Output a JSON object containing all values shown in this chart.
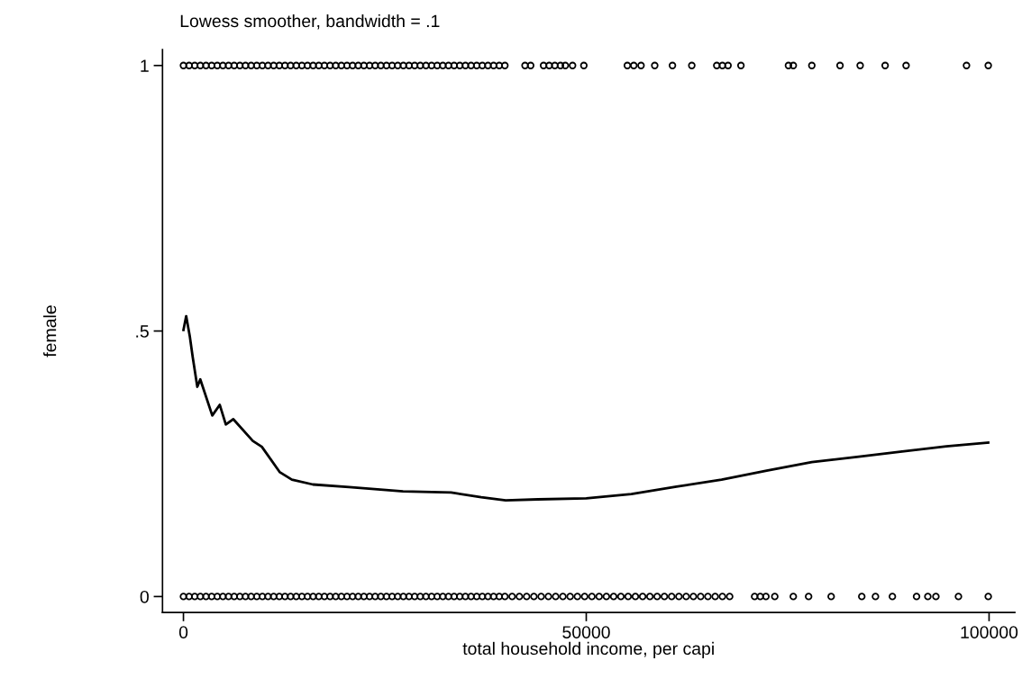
{
  "chart_data": {
    "type": "scatter",
    "title": "Lowess smoother, bandwidth = .1",
    "xlabel": "total household income, per capi",
    "ylabel": "female",
    "xlim": [
      -2600,
      103200
    ],
    "ylim": [
      -0.03,
      1.03
    ],
    "xticks": [
      0,
      50000,
      100000
    ],
    "yticks": [
      0,
      {
        "value": 0.5,
        "label": ".5"
      },
      1
    ],
    "grid": false,
    "series": [
      {
        "marker": "circle",
        "color": "#000000",
        "x": [
          0,
          700,
          1400,
          2100,
          2800,
          3500,
          4200,
          4900,
          5600,
          6300,
          7000,
          7700,
          8400,
          9100,
          9800,
          10500,
          11200,
          11900,
          12600,
          13300,
          14000,
          14700,
          15400,
          16100,
          16800,
          17500,
          18200,
          18900,
          19600,
          20300,
          21000,
          21700,
          22400,
          23100,
          23800,
          24500,
          25200,
          25900,
          26600,
          27300,
          28000,
          28700,
          29400,
          30100,
          30800,
          31500,
          32200,
          32900,
          33600,
          34300,
          35000,
          35700,
          36400,
          37100,
          37800,
          38500,
          39200,
          39900,
          42400,
          43100,
          44700,
          45400,
          46100,
          46800,
          47400,
          48300,
          49700,
          55100,
          55900,
          56800,
          58500,
          60700,
          63100,
          66200,
          66900,
          67600,
          69200,
          75100,
          75700,
          78000,
          81500,
          84000,
          87100,
          89700,
          97200,
          99900
        ],
        "values": [
          1,
          1,
          1,
          1,
          1,
          1,
          1,
          1,
          1,
          1,
          1,
          1,
          1,
          1,
          1,
          1,
          1,
          1,
          1,
          1,
          1,
          1,
          1,
          1,
          1,
          1,
          1,
          1,
          1,
          1,
          1,
          1,
          1,
          1,
          1,
          1,
          1,
          1,
          1,
          1,
          1,
          1,
          1,
          1,
          1,
          1,
          1,
          1,
          1,
          1,
          1,
          1,
          1,
          1,
          1,
          1,
          1,
          1,
          1,
          1,
          1,
          1,
          1,
          1,
          1,
          1,
          1,
          1,
          1,
          1,
          1,
          1,
          1,
          1,
          1,
          1,
          1,
          1,
          1,
          1,
          1,
          1,
          1,
          1,
          1,
          1
        ]
      },
      {
        "marker": "circle",
        "color": "#000000",
        "x": [
          0,
          700,
          1400,
          2100,
          2800,
          3500,
          4200,
          4900,
          5600,
          6300,
          7000,
          7700,
          8400,
          9100,
          9800,
          10500,
          11200,
          11900,
          12600,
          13300,
          14000,
          14700,
          15400,
          16100,
          16800,
          17500,
          18200,
          18900,
          19600,
          20300,
          21000,
          21700,
          22400,
          23100,
          23800,
          24500,
          25200,
          25900,
          26600,
          27300,
          28000,
          28700,
          29400,
          30100,
          30800,
          31500,
          32200,
          32900,
          33600,
          34300,
          35000,
          35700,
          36400,
          37100,
          37800,
          38500,
          39200,
          39900,
          40800,
          41700,
          42600,
          43500,
          44400,
          45300,
          46200,
          47100,
          48000,
          48900,
          49800,
          50700,
          51600,
          52500,
          53400,
          54300,
          55200,
          56100,
          57000,
          57900,
          58800,
          59700,
          60600,
          61500,
          62400,
          63300,
          64200,
          65100,
          66000,
          66900,
          67800,
          70900,
          71600,
          72300,
          73400,
          75700,
          77600,
          80400,
          84200,
          85900,
          88000,
          91000,
          92400,
          93400,
          96200,
          99900
        ],
        "values": [
          0,
          0,
          0,
          0,
          0,
          0,
          0,
          0,
          0,
          0,
          0,
          0,
          0,
          0,
          0,
          0,
          0,
          0,
          0,
          0,
          0,
          0,
          0,
          0,
          0,
          0,
          0,
          0,
          0,
          0,
          0,
          0,
          0,
          0,
          0,
          0,
          0,
          0,
          0,
          0,
          0,
          0,
          0,
          0,
          0,
          0,
          0,
          0,
          0,
          0,
          0,
          0,
          0,
          0,
          0,
          0,
          0,
          0,
          0,
          0,
          0,
          0,
          0,
          0,
          0,
          0,
          0,
          0,
          0,
          0,
          0,
          0,
          0,
          0,
          0,
          0,
          0,
          0,
          0,
          0,
          0,
          0,
          0,
          0,
          0,
          0,
          0,
          0,
          0,
          0,
          0,
          0,
          0,
          0,
          0,
          0,
          0,
          0,
          0,
          0,
          0,
          0,
          0,
          0
        ]
      },
      {
        "type": "line",
        "marker": "none",
        "line_style": "solid",
        "color": "#000000",
        "x": [
          0,
          340,
          780,
          1150,
          1720,
          2090,
          3580,
          4510,
          5260,
          6190,
          8610,
          9730,
          11970,
          13460,
          16070,
          20550,
          27260,
          33220,
          36950,
          40000,
          44000,
          50000,
          55600,
          61200,
          66800,
          72400,
          78000,
          83600,
          89200,
          94700,
          99900
        ],
        "values": [
          0.502,
          0.528,
          0.491,
          0.451,
          0.395,
          0.409,
          0.341,
          0.361,
          0.324,
          0.334,
          0.293,
          0.282,
          0.234,
          0.22,
          0.211,
          0.206,
          0.198,
          0.196,
          0.187,
          0.181,
          0.183,
          0.185,
          0.193,
          0.207,
          0.22,
          0.237,
          0.253,
          0.263,
          0.273,
          0.283,
          0.29
        ]
      }
    ]
  }
}
